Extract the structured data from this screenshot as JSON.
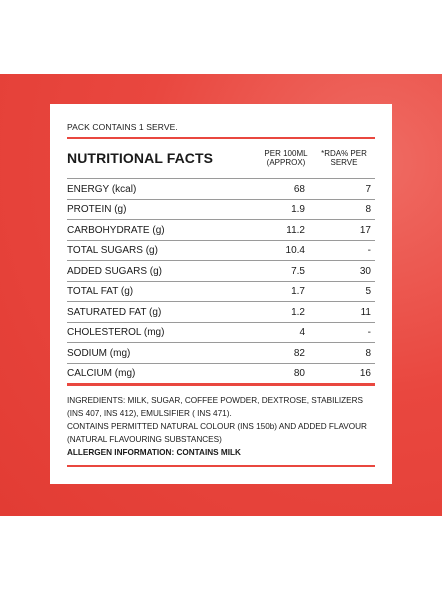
{
  "pack_text": "PACK CONTAINS 1 SERVE.",
  "table": {
    "title": "NUTRITIONAL FACTS",
    "col1_header": [
      "PER 100ML",
      "(APPROX)"
    ],
    "col2_header": [
      "*RDA% PER",
      "SERVE"
    ],
    "rows": [
      {
        "name": "ENERGY (kcal)",
        "per100": "68",
        "rda": "7"
      },
      {
        "name": "PROTEIN (g)",
        "per100": "1.9",
        "rda": "8"
      },
      {
        "name": "CARBOHYDRATE (g)",
        "per100": "11.2",
        "rda": "17"
      },
      {
        "name": "TOTAL SUGARS (g)",
        "per100": "10.4",
        "rda": "-"
      },
      {
        "name": "ADDED SUGARS (g)",
        "per100": "7.5",
        "rda": "30"
      },
      {
        "name": "TOTAL FAT (g)",
        "per100": "1.7",
        "rda": "5"
      },
      {
        "name": "SATURATED FAT (g)",
        "per100": "1.2",
        "rda": "11"
      },
      {
        "name": "CHOLESTEROL (mg)",
        "per100": "4",
        "rda": "-"
      },
      {
        "name": "SODIUM (mg)",
        "per100": "82",
        "rda": "8"
      },
      {
        "name": "CALCIUM (mg)",
        "per100": "80",
        "rda": "16"
      }
    ]
  },
  "ingredients": {
    "line1": "INGREDIENTS: MILK, SUGAR, COFFEE POWDER, DEXTROSE, STABILIZERS",
    "line2": "(INS 407, INS 412), EMULSIFIER ( INS 471).",
    "line3": "CONTAINS PERMITTED NATURAL COLOUR (INS 150b) AND ADDED FLAVOUR",
    "line4": "(NATURAL FLAVOURING SUBSTANCES)",
    "allergen": "ALLERGEN INFORMATION: CONTAINS MILK"
  },
  "colors": {
    "accent_red": "#e9473f",
    "card_bg": "#ffffff"
  }
}
